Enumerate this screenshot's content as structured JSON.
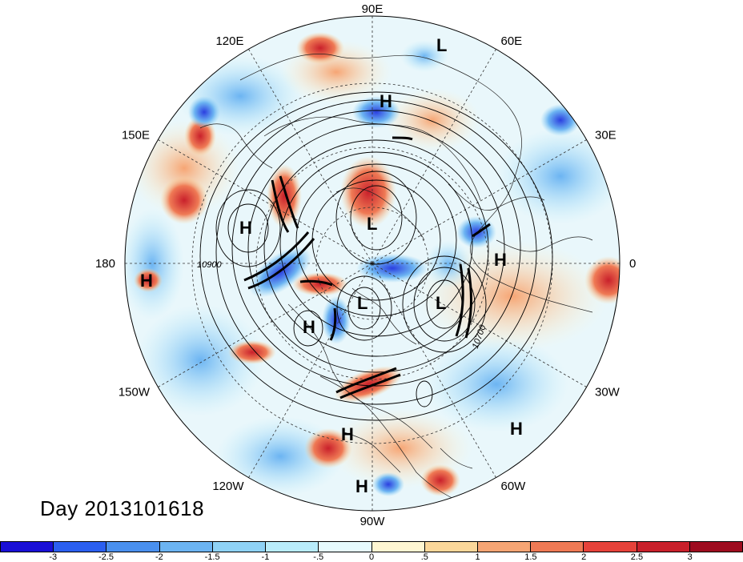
{
  "map": {
    "title": "Day 2013101618",
    "longitude_labels": [
      {
        "text": "90E",
        "lon": 90
      },
      {
        "text": "60E",
        "lon": 60
      },
      {
        "text": "30E",
        "lon": 30
      },
      {
        "text": "0",
        "lon": 0
      },
      {
        "text": "30W",
        "lon": -30
      },
      {
        "text": "60W",
        "lon": -60
      },
      {
        "text": "90W",
        "lon": -90
      },
      {
        "text": "120W",
        "lon": -120
      },
      {
        "text": "150W",
        "lon": -150
      },
      {
        "text": "180",
        "lon": 180
      },
      {
        "text": "150E",
        "lon": 150
      },
      {
        "text": "120E",
        "lon": 120
      }
    ],
    "pressure_centers": [
      {
        "type": "L",
        "name": "low-north"
      },
      {
        "type": "H",
        "name": "high-north"
      },
      {
        "type": "H",
        "name": "high-west"
      },
      {
        "type": "L",
        "name": "low-center"
      },
      {
        "type": "H",
        "name": "high-east"
      },
      {
        "type": "H",
        "name": "high-far-west"
      },
      {
        "type": "L",
        "name": "low-south-center"
      },
      {
        "type": "H",
        "name": "high-south-center"
      },
      {
        "type": "L",
        "name": "low-southeast"
      },
      {
        "type": "H",
        "name": "high-south"
      },
      {
        "type": "H",
        "name": "high-southeast"
      },
      {
        "type": "H",
        "name": "high-bottom"
      }
    ],
    "contour_labels": [
      "10900",
      "10700"
    ],
    "colorbar": {
      "colors": [
        "#1a0fd6",
        "#2b5ff0",
        "#4a90ee",
        "#6cb4f2",
        "#8fd2f6",
        "#b9ecfb",
        "#e6fafd",
        "#fff6d2",
        "#fbd79a",
        "#f6a574",
        "#ef7a55",
        "#e6423a",
        "#c9202b",
        "#9e0b1f"
      ],
      "tick_labels": [
        "-3",
        "-2.5",
        "-2",
        "-1.5",
        "-1",
        "-.5",
        "0",
        ".5",
        "1",
        "1.5",
        "2",
        "2.5",
        "3"
      ]
    }
  }
}
